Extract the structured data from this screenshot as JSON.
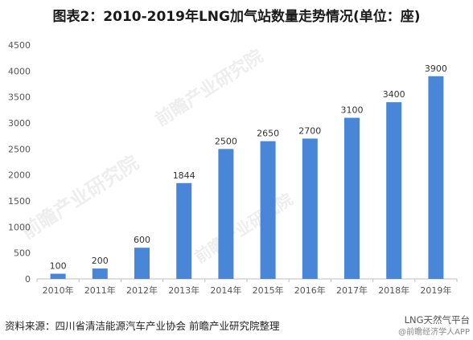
{
  "title": "图表2：2010-2019年LNG加气站数量走势情况(单位：座)",
  "source": "资料来源：四川省清洁能源汽车产业协会 前瞻产业研究院整理",
  "watermark": "前瞻产业研究院",
  "brand": {
    "line1": "LNG天然气平台",
    "line2": "@前瞻经济学人APP"
  },
  "colors": {
    "bar": "#4a86d8",
    "axis": "#bfbfbf"
  },
  "chart_data": {
    "type": "bar",
    "categories": [
      "2010年",
      "2011年",
      "2012年",
      "2013年",
      "2014年",
      "2015年",
      "2016年",
      "2017年",
      "2018年",
      "2019年"
    ],
    "values": [
      100,
      200,
      600,
      1844,
      2500,
      2650,
      2700,
      3100,
      3400,
      3900
    ],
    "ylim": [
      0,
      4500
    ],
    "yticks": [
      0,
      500,
      1000,
      1500,
      2000,
      2500,
      3000,
      3500,
      4000,
      4500
    ],
    "grid": false,
    "legend": "none"
  }
}
